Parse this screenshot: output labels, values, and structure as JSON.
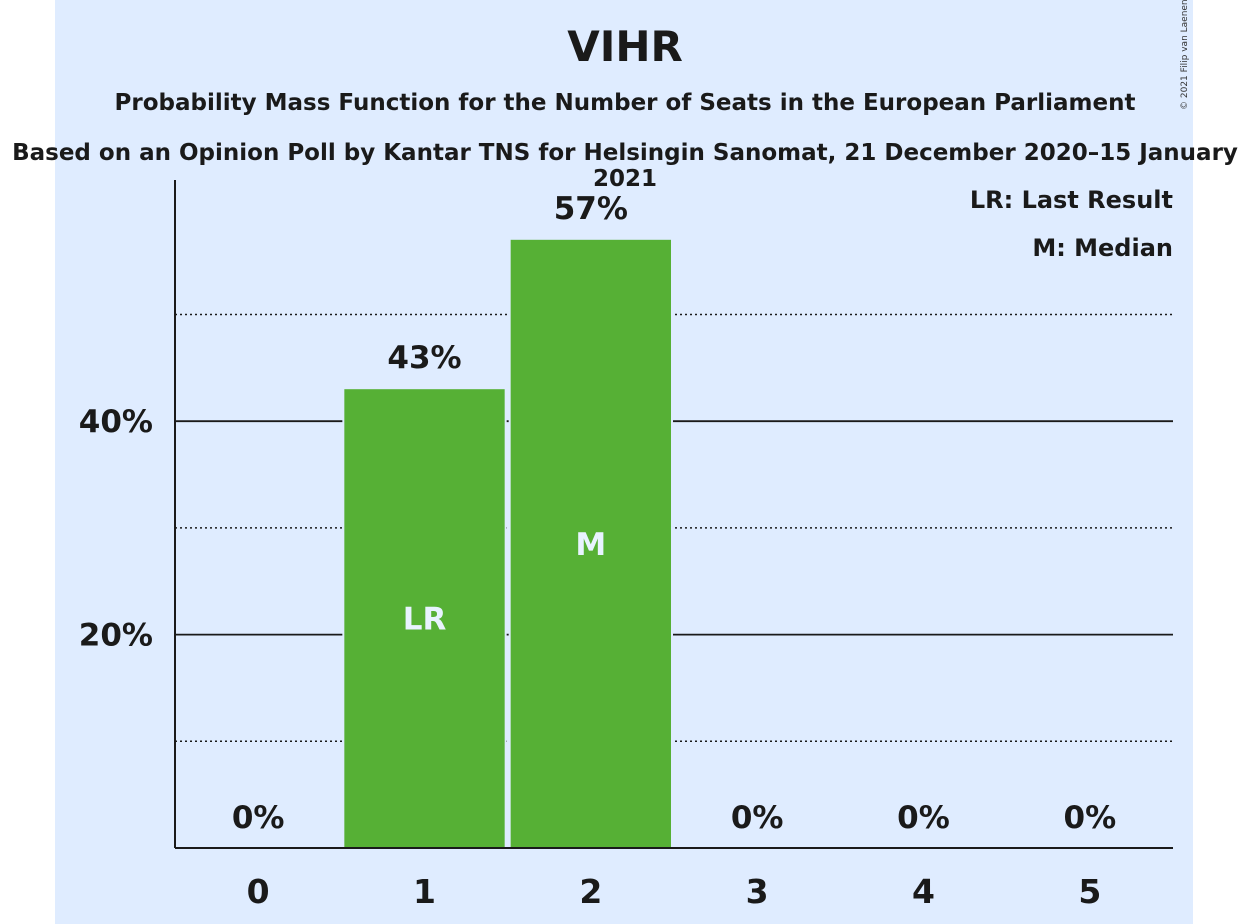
{
  "chart_data": {
    "type": "bar",
    "title": "VIHR",
    "subtitle": "Probability Mass Function for the Number of Seats in the European Parliament",
    "subtitle2": "Based on an Opinion Poll by Kantar TNS for Helsingin Sanomat, 21 December 2020–15 January 2021",
    "copyright": "© 2021 Filip van Laenen",
    "categories": [
      "0",
      "1",
      "2",
      "3",
      "4",
      "5"
    ],
    "values": [
      0,
      43,
      57,
      0,
      0,
      0
    ],
    "value_labels": [
      "0%",
      "43%",
      "57%",
      "0%",
      "0%",
      "0%"
    ],
    "bar_annotations": [
      "",
      "LR",
      "M",
      "",
      "",
      ""
    ],
    "y_ticks": [
      {
        "value": 20,
        "label": "20%"
      },
      {
        "value": 40,
        "label": "40%"
      }
    ],
    "y_minor_gridlines": [
      10,
      30,
      50
    ],
    "ylim": [
      0,
      62
    ],
    "legend": [
      "LR: Last Result",
      "M: Median"
    ],
    "legend_position": "top-right",
    "colors": {
      "bar": "#56b035",
      "background": "#dfecff",
      "text": "#1a1a1a",
      "bar_label": "#e8f3ff"
    }
  }
}
